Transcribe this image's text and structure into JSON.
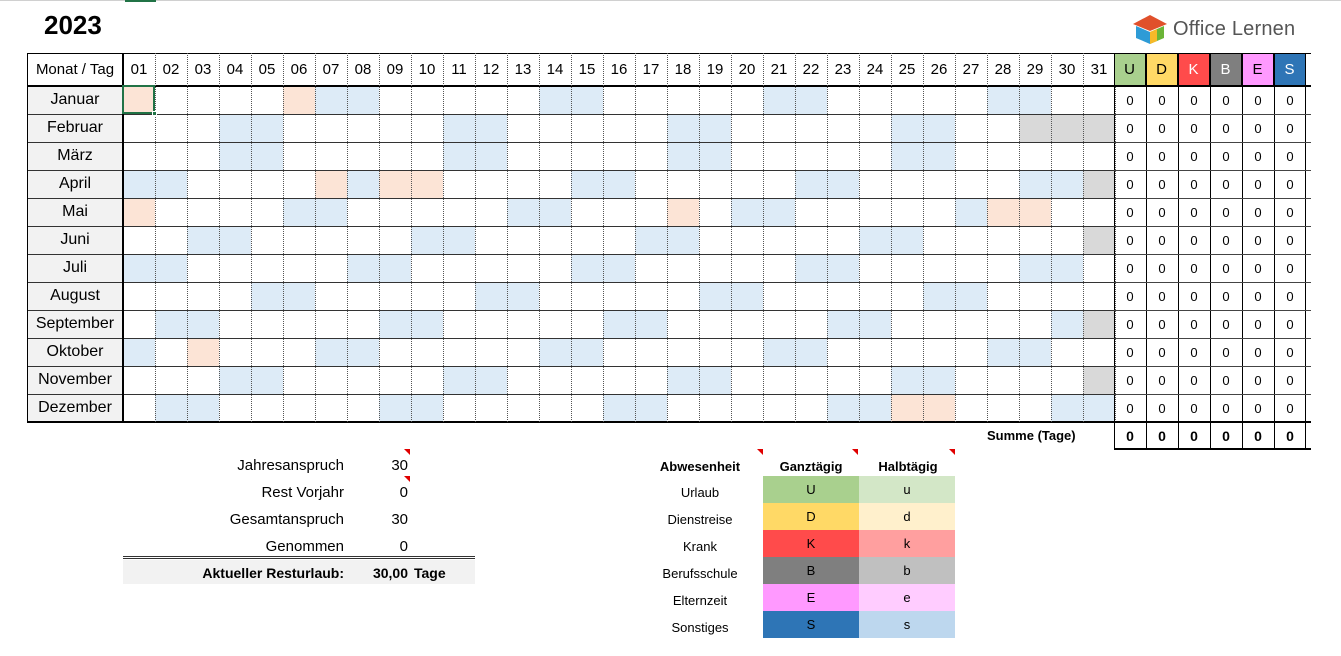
{
  "year": "2023",
  "logo_text": "Office Lernen",
  "header_label": "Monat / Tag",
  "days": [
    "01",
    "02",
    "03",
    "04",
    "05",
    "06",
    "07",
    "08",
    "09",
    "10",
    "11",
    "12",
    "13",
    "14",
    "15",
    "16",
    "17",
    "18",
    "19",
    "20",
    "21",
    "22",
    "23",
    "24",
    "25",
    "26",
    "27",
    "28",
    "29",
    "30",
    "31"
  ],
  "counters": [
    {
      "label": "U",
      "color": "#a9d08e"
    },
    {
      "label": "D",
      "color": "#ffd966"
    },
    {
      "label": "K",
      "color": "#ff4b4b"
    },
    {
      "label": "B",
      "color": "#7f7f7f"
    },
    {
      "label": "E",
      "color": "#ff99ff"
    },
    {
      "label": "S",
      "color": "#2e75b6"
    }
  ],
  "months": [
    {
      "name": "Januar",
      "days": 31,
      "weekends": [
        7,
        8,
        14,
        15,
        21,
        22,
        28,
        29
      ],
      "holidays": [
        1,
        6
      ],
      "counts": [
        0,
        0,
        0,
        0,
        0,
        0
      ]
    },
    {
      "name": "Februar",
      "days": 28,
      "weekends": [
        4,
        5,
        11,
        12,
        18,
        19,
        25,
        26
      ],
      "holidays": [],
      "counts": [
        0,
        0,
        0,
        0,
        0,
        0
      ]
    },
    {
      "name": "März",
      "days": 31,
      "weekends": [
        4,
        5,
        11,
        12,
        18,
        19,
        25,
        26
      ],
      "holidays": [],
      "counts": [
        0,
        0,
        0,
        0,
        0,
        0
      ]
    },
    {
      "name": "April",
      "days": 30,
      "weekends": [
        1,
        2,
        8,
        15,
        16,
        22,
        23,
        29,
        30
      ],
      "holidays": [
        7,
        9,
        10
      ],
      "counts": [
        0,
        0,
        0,
        0,
        0,
        0
      ]
    },
    {
      "name": "Mai",
      "days": 31,
      "weekends": [
        6,
        7,
        13,
        14,
        20,
        21,
        27
      ],
      "holidays": [
        1,
        18,
        28,
        29
      ],
      "counts": [
        0,
        0,
        0,
        0,
        0,
        0
      ]
    },
    {
      "name": "Juni",
      "days": 30,
      "weekends": [
        3,
        4,
        10,
        11,
        17,
        18,
        24,
        25
      ],
      "holidays": [],
      "counts": [
        0,
        0,
        0,
        0,
        0,
        0
      ]
    },
    {
      "name": "Juli",
      "days": 31,
      "weekends": [
        1,
        2,
        8,
        9,
        15,
        16,
        22,
        23,
        29,
        30
      ],
      "holidays": [],
      "counts": [
        0,
        0,
        0,
        0,
        0,
        0
      ]
    },
    {
      "name": "August",
      "days": 31,
      "weekends": [
        5,
        6,
        12,
        13,
        19,
        20,
        26,
        27
      ],
      "holidays": [],
      "counts": [
        0,
        0,
        0,
        0,
        0,
        0
      ]
    },
    {
      "name": "September",
      "days": 30,
      "weekends": [
        2,
        3,
        9,
        10,
        16,
        17,
        23,
        24,
        30
      ],
      "holidays": [],
      "counts": [
        0,
        0,
        0,
        0,
        0,
        0
      ]
    },
    {
      "name": "Oktober",
      "days": 31,
      "weekends": [
        1,
        7,
        8,
        14,
        15,
        21,
        22,
        28,
        29
      ],
      "holidays": [
        3
      ],
      "counts": [
        0,
        0,
        0,
        0,
        0,
        0
      ]
    },
    {
      "name": "November",
      "days": 30,
      "weekends": [
        4,
        5,
        11,
        12,
        18,
        19,
        25,
        26
      ],
      "holidays": [],
      "counts": [
        0,
        0,
        0,
        0,
        0,
        0
      ]
    },
    {
      "name": "Dezember",
      "days": 31,
      "weekends": [
        2,
        3,
        9,
        10,
        16,
        17,
        23,
        24,
        30,
        31
      ],
      "holidays": [
        25,
        26
      ],
      "counts": [
        0,
        0,
        0,
        0,
        0,
        0
      ]
    }
  ],
  "totals_label": "Summe (Tage)",
  "totals": [
    0,
    0,
    0,
    0,
    0,
    0
  ],
  "summary": {
    "rows": [
      {
        "label": "Jahresanspruch",
        "value": "30",
        "note": true
      },
      {
        "label": "Rest Vorjahr",
        "value": "0",
        "note": true
      },
      {
        "label": "Gesamtanspruch",
        "value": "30",
        "note": false
      },
      {
        "label": "Genommen",
        "value": "0",
        "note": false
      }
    ],
    "result_label": "Aktueller Resturlaub:",
    "result_value": "30,00",
    "result_unit": "Tage"
  },
  "legend": {
    "col_absence": "Abwesenheit",
    "col_full": "Ganztägig",
    "col_half": "Halbtägig",
    "rows": [
      {
        "name": "Urlaub",
        "full": "U",
        "half": "u",
        "full_color": "#a9d08e",
        "half_color": "#d3e7c7"
      },
      {
        "name": "Dienstreise",
        "full": "D",
        "half": "d",
        "full_color": "#ffd966",
        "half_color": "#fff0cc"
      },
      {
        "name": "Krank",
        "full": "K",
        "half": "k",
        "full_color": "#ff4b4b",
        "half_color": "#ff9f9f"
      },
      {
        "name": "Berufsschule",
        "full": "B",
        "half": "b",
        "full_color": "#7f7f7f",
        "half_color": "#c0c0c0"
      },
      {
        "name": "Elternzeit",
        "full": "E",
        "half": "e",
        "full_color": "#ff99ff",
        "half_color": "#ffccff"
      },
      {
        "name": "Sonstiges",
        "full": "S",
        "half": "s",
        "full_color": "#2e75b6",
        "half_color": "#bdd7ee"
      }
    ]
  }
}
